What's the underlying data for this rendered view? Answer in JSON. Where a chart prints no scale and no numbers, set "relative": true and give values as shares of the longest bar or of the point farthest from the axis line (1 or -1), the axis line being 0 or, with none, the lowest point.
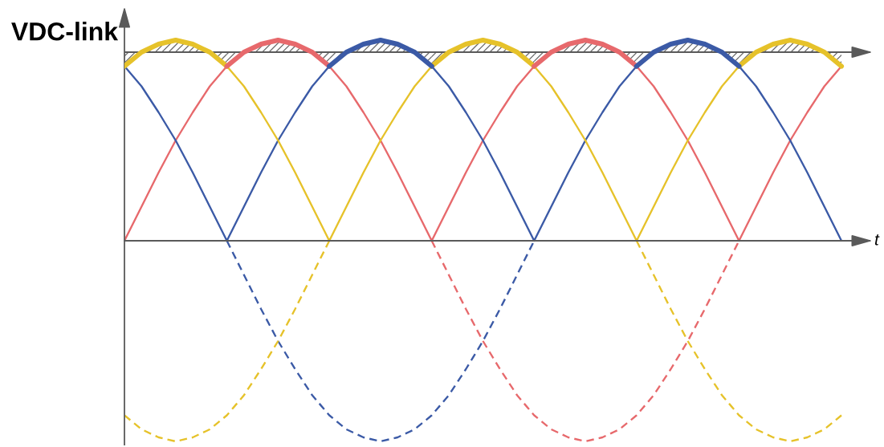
{
  "chart_data": {
    "type": "line",
    "relative": true,
    "ylabel": "VDC-link",
    "xlabel": "t",
    "categories": [
      null,
      null,
      null,
      null,
      null,
      null,
      null,
      null,
      null,
      null,
      null,
      null,
      null,
      null,
      null,
      null,
      null,
      null,
      null,
      null,
      null,
      null,
      null,
      null,
      null,
      null,
      null,
      null,
      null,
      null,
      null,
      null,
      null,
      null,
      null,
      null,
      null,
      null,
      null,
      null,
      null,
      null,
      null
    ],
    "series": [
      {
        "color": "#e7696c",
        "line_style": "solid",
        "values": [
          0,
          0.17,
          0.34,
          0.5,
          0.64,
          0.77,
          0.87,
          0.94,
          0.98,
          1,
          0.98,
          0.94,
          0.87,
          0.77,
          0.64,
          0.5,
          0.34,
          0.17,
          0,
          0.17,
          0.34,
          0.5,
          0.64,
          0.77,
          0.87,
          0.94,
          0.98,
          1,
          0.98,
          0.94,
          0.87,
          0.77,
          0.64,
          0.5,
          0.34,
          0.17,
          0,
          0.17,
          0.34,
          0.5,
          0.64,
          0.77,
          0.87
        ]
      },
      {
        "color": "#3b5aa6",
        "line_style": "solid",
        "values": [
          0.87,
          0.77,
          0.64,
          0.5,
          0.34,
          0.17,
          0,
          0.17,
          0.34,
          0.5,
          0.64,
          0.77,
          0.87,
          0.94,
          0.98,
          1,
          0.98,
          0.94,
          0.87,
          0.77,
          0.64,
          0.5,
          0.34,
          0.17,
          0,
          0.17,
          0.34,
          0.5,
          0.64,
          0.77,
          0.87,
          0.94,
          0.98,
          1,
          0.98,
          0.94,
          0.87,
          0.77,
          0.64,
          0.5,
          0.34,
          0.17,
          0
        ]
      },
      {
        "color": "#e6c22a",
        "line_style": "solid",
        "values": [
          0.87,
          0.94,
          0.98,
          1,
          0.98,
          0.94,
          0.87,
          0.77,
          0.64,
          0.5,
          0.34,
          0.17,
          0,
          0.17,
          0.34,
          0.5,
          0.64,
          0.77,
          0.87,
          0.94,
          0.98,
          1,
          0.98,
          0.94,
          0.87,
          0.77,
          0.64,
          0.5,
          0.34,
          0.17,
          0,
          0.17,
          0.34,
          0.5,
          0.64,
          0.77,
          0.87,
          0.94,
          0.98,
          1,
          0.98,
          0.94,
          0.87
        ]
      },
      {
        "color": "#e7696c",
        "line_style": "dashed",
        "values": [
          null,
          null,
          null,
          null,
          null,
          null,
          null,
          null,
          null,
          null,
          null,
          null,
          null,
          null,
          null,
          null,
          null,
          null,
          0,
          -0.17,
          -0.34,
          -0.5,
          -0.64,
          -0.77,
          -0.87,
          -0.94,
          -0.98,
          -1,
          -0.98,
          -0.94,
          -0.87,
          -0.77,
          -0.64,
          -0.5,
          -0.34,
          -0.17,
          0,
          null,
          null,
          null,
          null,
          null,
          null
        ]
      },
      {
        "color": "#3b5aa6",
        "line_style": "dashed",
        "values": [
          null,
          null,
          null,
          null,
          null,
          null,
          0,
          -0.17,
          -0.34,
          -0.5,
          -0.64,
          -0.77,
          -0.87,
          -0.94,
          -0.98,
          -1,
          -0.98,
          -0.94,
          -0.87,
          -0.77,
          -0.64,
          -0.5,
          -0.34,
          -0.17,
          0,
          null,
          null,
          null,
          null,
          null,
          null,
          null,
          null,
          null,
          null,
          null,
          null,
          null,
          null,
          null,
          null,
          null,
          null
        ]
      },
      {
        "color": "#e6c22a",
        "line_style": "dashed",
        "values": [
          -0.87,
          -0.94,
          -0.98,
          -1,
          -0.98,
          -0.94,
          -0.87,
          -0.77,
          -0.64,
          -0.5,
          -0.34,
          -0.17,
          0,
          null,
          null,
          null,
          null,
          null,
          null,
          null,
          null,
          null,
          null,
          null,
          null,
          null,
          null,
          null,
          null,
          null,
          0,
          -0.17,
          -0.34,
          -0.5,
          -0.64,
          -0.77,
          -0.87,
          -0.94,
          -0.98,
          -1,
          -0.98,
          -0.94,
          -0.87
        ]
      },
      {
        "color": "#e6c22a",
        "line_style": "solid",
        "values": [
          0.87,
          0.94,
          0.98,
          1,
          0.98,
          0.94,
          0.87,
          null,
          null,
          null,
          null,
          null,
          null,
          null,
          null,
          null,
          null,
          null,
          0.87,
          0.94,
          0.98,
          1,
          0.98,
          0.94,
          0.87,
          null,
          null,
          null,
          null,
          null,
          null,
          null,
          null,
          null,
          null,
          null,
          0.87,
          0.94,
          0.98,
          1,
          0.98,
          0.94,
          0.87
        ],
        "lower": [
          0.87,
          0.94,
          0.94,
          0.94,
          0.94,
          0.94,
          0.87,
          null,
          null,
          null,
          null,
          null,
          null,
          null,
          null,
          null,
          null,
          null,
          0.87,
          0.94,
          0.94,
          0.94,
          0.94,
          0.94,
          0.87,
          null,
          null,
          null,
          null,
          null,
          null,
          null,
          null,
          null,
          null,
          null,
          0.87,
          0.94,
          0.94,
          0.94,
          0.94,
          0.94,
          0.87
        ],
        "upper": [
          0.94,
          0.94,
          0.98,
          1,
          0.98,
          0.94,
          0.94,
          null,
          null,
          null,
          null,
          null,
          null,
          null,
          null,
          null,
          null,
          null,
          0.94,
          0.94,
          0.98,
          1,
          0.98,
          0.94,
          0.94,
          null,
          null,
          null,
          null,
          null,
          null,
          null,
          null,
          null,
          null,
          null,
          0.94,
          0.94,
          0.98,
          1,
          0.98,
          0.94,
          0.94
        ]
      },
      {
        "color": "#e7696c",
        "line_style": "solid",
        "values": [
          null,
          null,
          null,
          null,
          null,
          null,
          0.87,
          0.94,
          0.98,
          1,
          0.98,
          0.94,
          0.87,
          null,
          null,
          null,
          null,
          null,
          null,
          null,
          null,
          null,
          null,
          null,
          0.87,
          0.94,
          0.98,
          1,
          0.98,
          0.94,
          0.87,
          null,
          null,
          null,
          null,
          null,
          null,
          null,
          null,
          null,
          null,
          null,
          null
        ],
        "lower": [
          null,
          null,
          null,
          null,
          null,
          null,
          0.87,
          0.94,
          0.94,
          0.94,
          0.94,
          0.94,
          0.87,
          null,
          null,
          null,
          null,
          null,
          null,
          null,
          null,
          null,
          null,
          null,
          0.87,
          0.94,
          0.94,
          0.94,
          0.94,
          0.94,
          0.87,
          null,
          null,
          null,
          null,
          null,
          null,
          null,
          null,
          null,
          null,
          null,
          null
        ],
        "upper": [
          null,
          null,
          null,
          null,
          null,
          null,
          0.94,
          0.94,
          0.98,
          1,
          0.98,
          0.94,
          0.94,
          null,
          null,
          null,
          null,
          null,
          null,
          null,
          null,
          null,
          null,
          null,
          0.94,
          0.94,
          0.98,
          1,
          0.98,
          0.94,
          0.94,
          null,
          null,
          null,
          null,
          null,
          null,
          null,
          null,
          null,
          null,
          null,
          null
        ]
      },
      {
        "color": "#3b5aa6",
        "line_style": "solid",
        "values": [
          null,
          null,
          null,
          null,
          null,
          null,
          null,
          null,
          null,
          null,
          null,
          null,
          0.87,
          0.94,
          0.98,
          1,
          0.98,
          0.94,
          0.87,
          null,
          null,
          null,
          null,
          null,
          null,
          null,
          null,
          null,
          null,
          null,
          0.87,
          0.94,
          0.98,
          1,
          0.98,
          0.94,
          0.87,
          null,
          null,
          null,
          null,
          null,
          null
        ],
        "lower": [
          null,
          null,
          null,
          null,
          null,
          null,
          null,
          null,
          null,
          null,
          null,
          null,
          0.87,
          0.94,
          0.94,
          0.94,
          0.94,
          0.94,
          0.87,
          null,
          null,
          null,
          null,
          null,
          null,
          null,
          null,
          null,
          null,
          null,
          0.87,
          0.94,
          0.94,
          0.94,
          0.94,
          0.94,
          0.87,
          null,
          null,
          null,
          null,
          null,
          null
        ],
        "upper": [
          null,
          null,
          null,
          null,
          null,
          null,
          null,
          null,
          null,
          null,
          null,
          null,
          0.94,
          0.94,
          0.98,
          1,
          0.98,
          0.94,
          0.94,
          null,
          null,
          null,
          null,
          null,
          null,
          null,
          null,
          null,
          null,
          null,
          0.94,
          0.94,
          0.98,
          1,
          0.98,
          0.94,
          0.94,
          null,
          null,
          null,
          null,
          null,
          null
        ]
      }
    ],
    "ref_lines": [
      {
        "axis": "y",
        "value": 0.94,
        "color": "#5a5a5a"
      }
    ]
  }
}
